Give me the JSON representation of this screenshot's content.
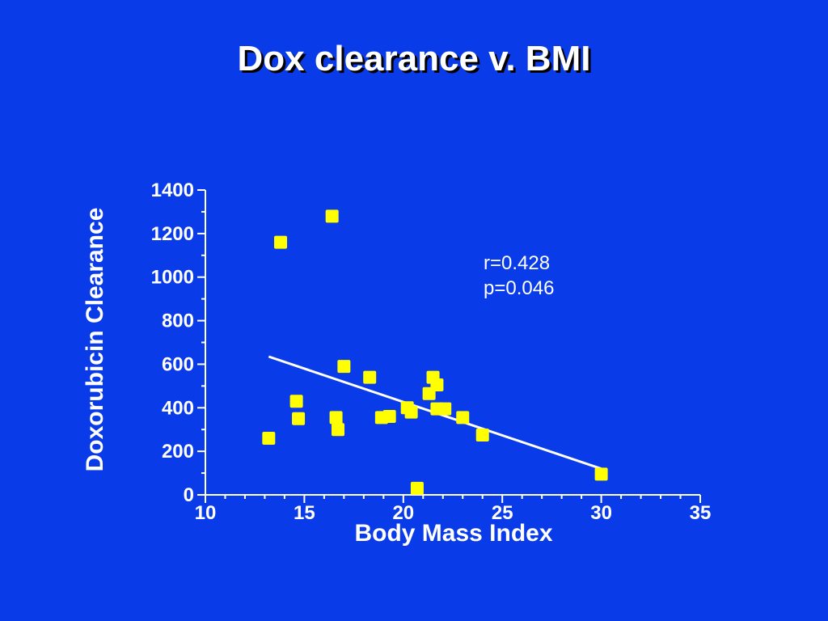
{
  "slide": {
    "title": "Dox clearance v. BMI"
  },
  "chart_data": {
    "type": "scatter",
    "title": "Dox clearance v. BMI",
    "xlabel": "Body Mass Index",
    "ylabel": "Doxorubicin Clearance",
    "xlim": [
      10,
      35
    ],
    "ylim": [
      0,
      1400
    ],
    "xticks": [
      10,
      15,
      20,
      25,
      30,
      35
    ],
    "yticks": [
      0,
      200,
      400,
      600,
      800,
      1000,
      1200,
      1400
    ],
    "grid": false,
    "annotations": [
      "r=0.428",
      "p=0.046"
    ],
    "colors": {
      "background": "#0a3be8",
      "points": "#ffff00",
      "line": "#ffffff",
      "axes": "#ffffff"
    },
    "series": [
      {
        "points": [
          {
            "x": 13.2,
            "y": 260
          },
          {
            "x": 13.8,
            "y": 1160
          },
          {
            "x": 14.6,
            "y": 430
          },
          {
            "x": 14.7,
            "y": 350
          },
          {
            "x": 16.4,
            "y": 1280
          },
          {
            "x": 16.6,
            "y": 355
          },
          {
            "x": 16.7,
            "y": 300
          },
          {
            "x": 17.0,
            "y": 590
          },
          {
            "x": 18.3,
            "y": 540
          },
          {
            "x": 18.9,
            "y": 355
          },
          {
            "x": 19.3,
            "y": 360
          },
          {
            "x": 20.2,
            "y": 400
          },
          {
            "x": 20.4,
            "y": 380
          },
          {
            "x": 20.7,
            "y": 30
          },
          {
            "x": 21.3,
            "y": 465
          },
          {
            "x": 21.5,
            "y": 540
          },
          {
            "x": 21.7,
            "y": 505
          },
          {
            "x": 21.7,
            "y": 395
          },
          {
            "x": 22.1,
            "y": 395
          },
          {
            "x": 23.0,
            "y": 355
          },
          {
            "x": 24.0,
            "y": 275
          },
          {
            "x": 30.0,
            "y": 95
          }
        ]
      }
    ],
    "trendline": {
      "x": [
        13.2,
        30.0
      ],
      "y": [
        635,
        120
      ]
    }
  }
}
